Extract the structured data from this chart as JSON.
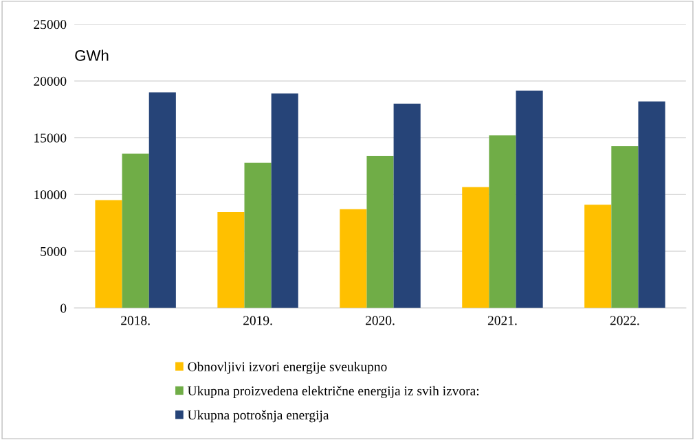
{
  "chart_data": {
    "type": "bar",
    "ylabel": "GWh",
    "categories": [
      "2018.",
      "2019.",
      "2020.",
      "2021.",
      "2022."
    ],
    "series": [
      {
        "name": "Obnovljivi izvori energije sveukupno",
        "color": "#ffc000",
        "values": [
          9500,
          8450,
          8700,
          10650,
          9100
        ]
      },
      {
        "name": "Ukupna proizvedena električne energija iz svih izvora:",
        "color": "#70ad47",
        "values": [
          13600,
          12800,
          13400,
          15200,
          14250
        ]
      },
      {
        "name": "Ukupna potrošnja energija",
        "color": "#264478",
        "values": [
          19000,
          18900,
          18000,
          19150,
          18200
        ]
      }
    ],
    "ylim": [
      0,
      25000
    ],
    "yticks": [
      0,
      5000,
      10000,
      15000,
      20000,
      25000
    ],
    "grid": "y",
    "legend": "bottom"
  }
}
